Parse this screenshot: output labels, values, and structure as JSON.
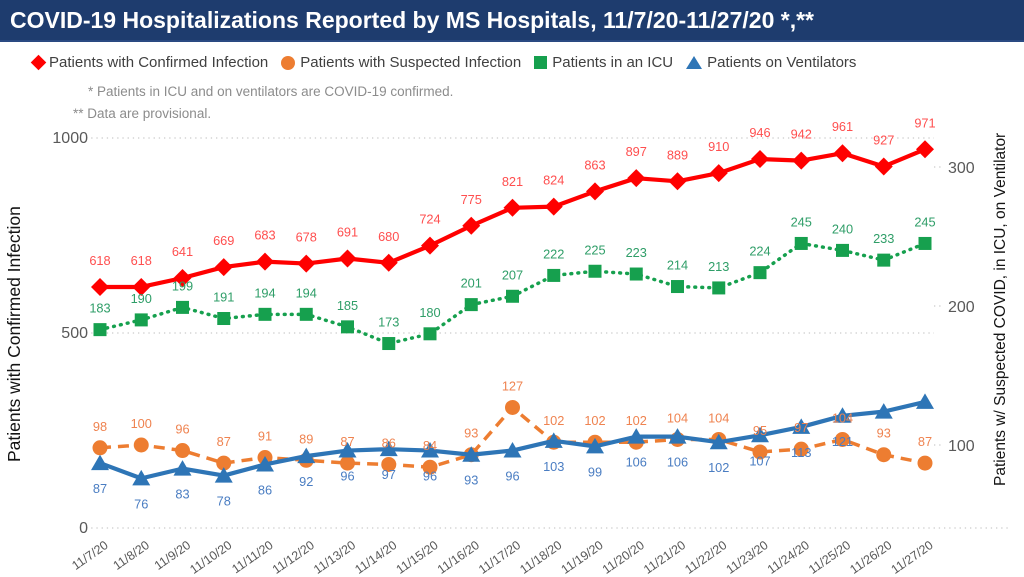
{
  "header": {
    "title": "COVID-19 Hospitalizations Reported by MS Hospitals, 11/7/20-11/27/20 *,**"
  },
  "notes": [
    "* Patients in ICU and on ventilators are COVID-19 confirmed.",
    "** Data are provisional."
  ],
  "legend": [
    {
      "label": "Patients with Confirmed Infection",
      "marker": "diamond",
      "color": "#ff0000"
    },
    {
      "label": "Patients with Suspected Infection",
      "marker": "circle",
      "color": "#ed7d31"
    },
    {
      "label": "Patients in an ICU",
      "marker": "square",
      "color": "#16a04e"
    },
    {
      "label": "Patients on Ventilators",
      "marker": "triangle",
      "color": "#2e75b6"
    }
  ],
  "colors": {
    "title_bar_bg": "#1e3c6e",
    "title_text": "#ffffff",
    "axis_tick_text": "#595959",
    "note_text": "#8c8c8c",
    "grid": "#c9c9c9",
    "legend_text": "#404040",
    "axis_title_text": "#141414"
  },
  "chart_data": {
    "type": "line",
    "title": "COVID-19 Hospitalizations Reported by MS Hospitals, 11/7/20-11/27/20 *,**",
    "x": [
      "11/7/20",
      "11/8/20",
      "11/9/20",
      "11/10/20",
      "11/11/20",
      "11/12/20",
      "11/13/20",
      "11/14/20",
      "11/15/20",
      "11/16/20",
      "11/17/20",
      "11/18/20",
      "11/19/20",
      "11/20/20",
      "11/21/20",
      "11/22/20",
      "11/23/20",
      "11/24/20",
      "11/25/20",
      "11/26/20",
      "11/27/20"
    ],
    "x_axis": {
      "tick_rotation_deg": -35
    },
    "left_axis": {
      "title": "Patients with Confirmed Infection",
      "ticks": [
        0,
        500,
        1000
      ],
      "range": [
        0,
        1000
      ]
    },
    "right_axis": {
      "title": "Patients w/ Suspected COVID, in ICU, on Ventilator",
      "ticks": [
        100,
        200,
        300
      ]
    },
    "grid": {
      "horizontal_dotted_at_left_ticks": true
    },
    "legend_position": "top",
    "series": [
      {
        "name": "Patients with Confirmed Infection",
        "axis": "left",
        "marker": "diamond",
        "line_style": "solid",
        "color": "#ff0000",
        "label_color": "#ff4f4f",
        "values": [
          618,
          618,
          641,
          669,
          683,
          678,
          691,
          680,
          724,
          775,
          821,
          824,
          863,
          897,
          889,
          910,
          946,
          942,
          961,
          927,
          971
        ]
      },
      {
        "name": "Patients with Suspected Infection",
        "axis": "right",
        "marker": "circle",
        "line_style": "dashed",
        "color": "#ed7d31",
        "label_color": "#ef8350",
        "values": [
          98,
          100,
          96,
          87,
          91,
          89,
          87,
          86,
          84,
          93,
          127,
          102,
          102,
          102,
          104,
          104,
          95,
          97,
          104,
          93,
          87
        ]
      },
      {
        "name": "Patients in an ICU",
        "axis": "right",
        "marker": "square",
        "line_style": "dotted",
        "color": "#16a04e",
        "label_color": "#2f9e68",
        "values": [
          183,
          190,
          199,
          191,
          194,
          194,
          185,
          173,
          180,
          201,
          207,
          222,
          225,
          223,
          214,
          213,
          224,
          245,
          240,
          233,
          245
        ]
      },
      {
        "name": "Patients on Ventilators",
        "axis": "right",
        "marker": "triangle",
        "line_style": "solid",
        "color": "#2e75b6",
        "label_color": "#4a7dc2",
        "values": [
          87,
          76,
          83,
          78,
          86,
          92,
          96,
          97,
          96,
          93,
          96,
          103,
          99,
          106,
          106,
          102,
          107,
          113,
          121,
          124,
          131
        ],
        "labels": [
          "87",
          "76",
          "83",
          "78",
          "86",
          "92",
          "96",
          "97",
          "96",
          "93",
          "96",
          "103",
          "99",
          "106",
          "106",
          "102",
          "107",
          "113",
          "121",
          "",
          ""
        ]
      }
    ]
  }
}
